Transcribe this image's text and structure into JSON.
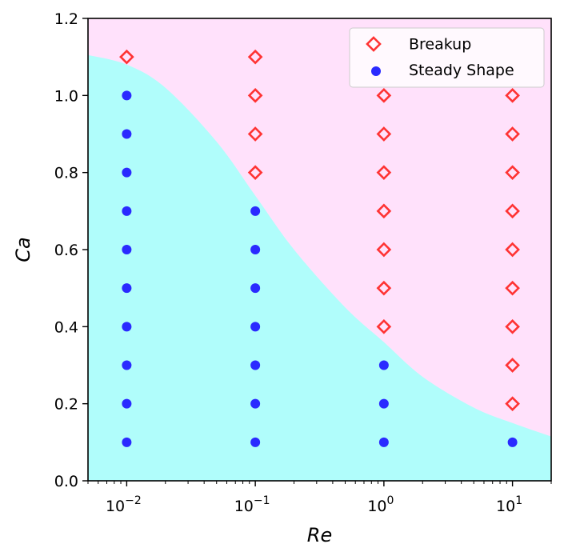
{
  "chart_data": {
    "type": "scatter",
    "xlabel": "Re",
    "ylabel": "Ca",
    "xscale": "log",
    "xlim": [
      0.005,
      20
    ],
    "ylim": [
      0,
      1.2
    ],
    "x_ticks": [
      {
        "value": 0.01,
        "base": "10",
        "exp": "−2"
      },
      {
        "value": 0.1,
        "base": "10",
        "exp": "−1"
      },
      {
        "value": 1,
        "base": "10",
        "exp": "0"
      },
      {
        "value": 10,
        "base": "10",
        "exp": "1"
      }
    ],
    "y_ticks": [
      {
        "value": 0.0,
        "label": "0.0"
      },
      {
        "value": 0.2,
        "label": "0.2"
      },
      {
        "value": 0.4,
        "label": "0.4"
      },
      {
        "value": 0.6,
        "label": "0.6"
      },
      {
        "value": 0.8,
        "label": "0.8"
      },
      {
        "value": 1.0,
        "label": "1.0"
      },
      {
        "value": 1.2,
        "label": "1.2"
      }
    ],
    "legend_position": "top-right",
    "regions": {
      "upper_color": "#ffe1fb",
      "lower_color": "#b0fdfb",
      "boundary": [
        {
          "x": 0.005,
          "y": 1.105
        },
        {
          "x": 0.01,
          "y": 1.08
        },
        {
          "x": 0.02,
          "y": 1.02
        },
        {
          "x": 0.05,
          "y": 0.88
        },
        {
          "x": 0.1,
          "y": 0.74
        },
        {
          "x": 0.2,
          "y": 0.6
        },
        {
          "x": 0.5,
          "y": 0.45
        },
        {
          "x": 1,
          "y": 0.36
        },
        {
          "x": 2,
          "y": 0.27
        },
        {
          "x": 5,
          "y": 0.19
        },
        {
          "x": 10,
          "y": 0.15
        },
        {
          "x": 20,
          "y": 0.115
        }
      ]
    },
    "series": [
      {
        "name": "Breakup",
        "marker": "diamond",
        "color": "#ff3333",
        "points": [
          {
            "x": 0.01,
            "y": 1.1
          },
          {
            "x": 0.1,
            "y": 1.1
          },
          {
            "x": 0.1,
            "y": 1.0
          },
          {
            "x": 0.1,
            "y": 0.9
          },
          {
            "x": 0.1,
            "y": 0.8
          },
          {
            "x": 1,
            "y": 1.0
          },
          {
            "x": 1,
            "y": 0.9
          },
          {
            "x": 1,
            "y": 0.8
          },
          {
            "x": 1,
            "y": 0.7
          },
          {
            "x": 1,
            "y": 0.6
          },
          {
            "x": 1,
            "y": 0.5
          },
          {
            "x": 1,
            "y": 0.4
          },
          {
            "x": 10,
            "y": 1.0
          },
          {
            "x": 10,
            "y": 0.9
          },
          {
            "x": 10,
            "y": 0.8
          },
          {
            "x": 10,
            "y": 0.7
          },
          {
            "x": 10,
            "y": 0.6
          },
          {
            "x": 10,
            "y": 0.5
          },
          {
            "x": 10,
            "y": 0.4
          },
          {
            "x": 10,
            "y": 0.3
          },
          {
            "x": 10,
            "y": 0.2
          }
        ]
      },
      {
        "name": "Steady Shape",
        "marker": "circle",
        "color": "#2a2aff",
        "points": [
          {
            "x": 0.01,
            "y": 1.0
          },
          {
            "x": 0.01,
            "y": 0.9
          },
          {
            "x": 0.01,
            "y": 0.8
          },
          {
            "x": 0.01,
            "y": 0.7
          },
          {
            "x": 0.01,
            "y": 0.6
          },
          {
            "x": 0.01,
            "y": 0.5
          },
          {
            "x": 0.01,
            "y": 0.4
          },
          {
            "x": 0.01,
            "y": 0.3
          },
          {
            "x": 0.01,
            "y": 0.2
          },
          {
            "x": 0.01,
            "y": 0.1
          },
          {
            "x": 0.1,
            "y": 0.7
          },
          {
            "x": 0.1,
            "y": 0.6
          },
          {
            "x": 0.1,
            "y": 0.5
          },
          {
            "x": 0.1,
            "y": 0.4
          },
          {
            "x": 0.1,
            "y": 0.3
          },
          {
            "x": 0.1,
            "y": 0.2
          },
          {
            "x": 0.1,
            "y": 0.1
          },
          {
            "x": 1,
            "y": 0.3
          },
          {
            "x": 1,
            "y": 0.2
          },
          {
            "x": 1,
            "y": 0.1
          },
          {
            "x": 10,
            "y": 0.1
          }
        ]
      }
    ]
  }
}
